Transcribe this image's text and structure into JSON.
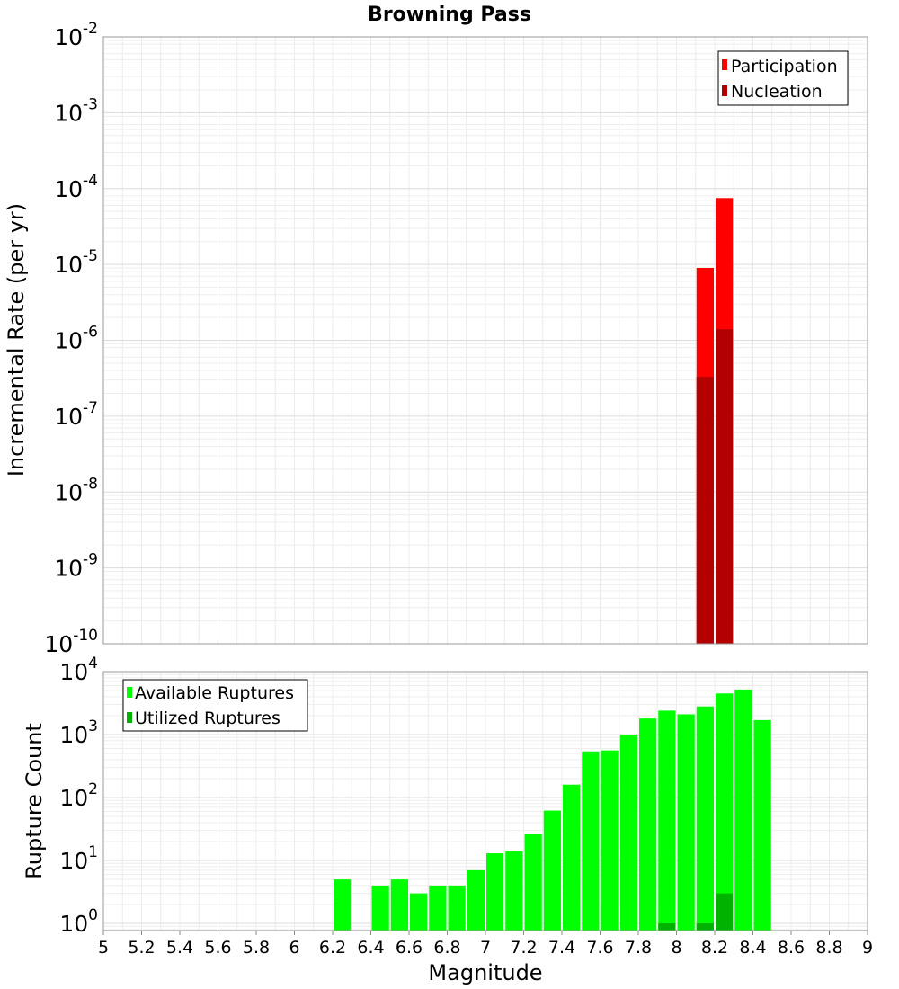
{
  "chart_data": [
    {
      "type": "bar",
      "title": "Browning Pass",
      "xlabel": "Magnitude",
      "ylabel": "Incremental Rate (per yr)",
      "yscale": "log",
      "xlim": [
        5,
        9
      ],
      "ylim": [
        1e-10,
        0.01
      ],
      "ytick_exponents": [
        -2,
        -3,
        -4,
        -5,
        -6,
        -7,
        -8,
        -9,
        -10
      ],
      "grid": true,
      "legend_position": "top-right",
      "bin_width": 0.1,
      "series": [
        {
          "name": "Participation",
          "color": "#ff0000",
          "x": [
            8.15,
            8.25
          ],
          "values": [
            9e-06,
            7.5e-05
          ]
        },
        {
          "name": "Nucleation",
          "color": "#b30000",
          "x": [
            8.15,
            8.25
          ],
          "values": [
            3.3e-07,
            1.4e-06
          ]
        }
      ]
    },
    {
      "type": "bar",
      "title": "",
      "xlabel": "Magnitude",
      "ylabel": "Rupture Count",
      "yscale": "log",
      "xlim": [
        5,
        9
      ],
      "ylim": [
        0.77,
        10000
      ],
      "ytick_exponents": [
        4,
        3,
        2,
        1,
        0
      ],
      "xticks": [
        "5",
        "5.2",
        "5.4",
        "5.6",
        "5.8",
        "6",
        "6.2",
        "6.4",
        "6.6",
        "6.8",
        "7",
        "7.2",
        "7.4",
        "7.6",
        "7.8",
        "8",
        "8.2",
        "8.4",
        "8.6",
        "8.8",
        "9"
      ],
      "grid": true,
      "legend_position": "top-left",
      "bin_width": 0.1,
      "series": [
        {
          "name": "Available Ruptures",
          "color": "#00ff00",
          "x": [
            6.25,
            6.45,
            6.55,
            6.65,
            6.75,
            6.85,
            6.95,
            7.05,
            7.15,
            7.25,
            7.35,
            7.45,
            7.55,
            7.65,
            7.75,
            7.85,
            7.95,
            8.05,
            8.15,
            8.25,
            8.35,
            8.45
          ],
          "values": [
            5,
            4,
            5,
            3,
            4,
            4,
            7,
            13,
            14,
            26,
            62,
            160,
            540,
            560,
            1000,
            1800,
            2400,
            2100,
            2800,
            4500,
            5200,
            1700
          ]
        },
        {
          "name": "Utilized Ruptures",
          "color": "#00b300",
          "x": [
            7.95,
            8.15,
            8.25
          ],
          "values": [
            1,
            1,
            3
          ]
        }
      ]
    }
  ]
}
